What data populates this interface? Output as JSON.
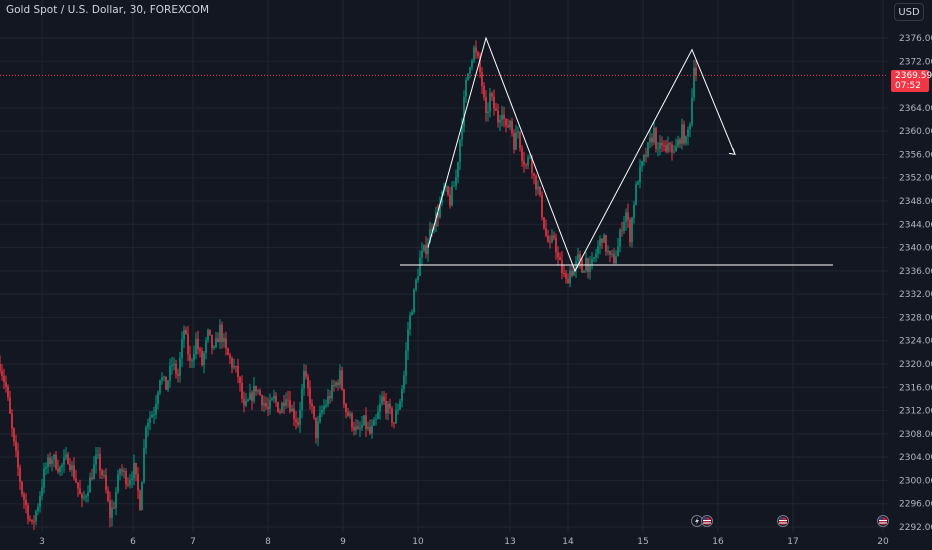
{
  "header": {
    "symbol_title": "Gold Spot / U.S. Dollar, 30, FOREXCOM",
    "currency_button": "USD"
  },
  "price_label": {
    "price": "2369.59",
    "countdown": "07:52",
    "color": "#f23645"
  },
  "colors": {
    "up": "#089981",
    "down": "#f23645",
    "background": "#131722",
    "grid": "#1f2430",
    "annotation": "#ffffff"
  },
  "event_icons": [
    "flash-icon",
    "us-flag-icon",
    "us-flag-icon",
    "us-flag-icon"
  ],
  "chart_data": {
    "type": "candlestick",
    "ylim": [
      2290.6,
      2379.9
    ],
    "y_ticks": [
      2376.0,
      2372.0,
      2364.0,
      2360.0,
      2356.0,
      2352.0,
      2348.0,
      2344.0,
      2340.0,
      2336.0,
      2332.0,
      2328.0,
      2324.0,
      2320.0,
      2316.0,
      2312.0,
      2308.0,
      2304.0,
      2300.0,
      2296.0,
      2292.0
    ],
    "y_tick_labels": [
      "2376.00",
      "2372.00",
      "2364.00",
      "2360.00",
      "2356.00",
      "2352.00",
      "2348.00",
      "2344.00",
      "2340.00",
      "2336.00",
      "2332.00",
      "2328.00",
      "2324.00",
      "2320.00",
      "2316.00",
      "2312.00",
      "2308.00",
      "2304.00",
      "2300.00",
      "2296.00",
      "2292.00"
    ],
    "x_ticks": [
      {
        "label": "3",
        "bar": 42
      },
      {
        "label": "6",
        "bar": 133
      },
      {
        "label": "7",
        "bar": 193
      },
      {
        "label": "8",
        "bar": 268
      },
      {
        "label": "9",
        "bar": 343
      },
      {
        "label": "10",
        "bar": 418
      },
      {
        "label": "13",
        "bar": 510
      },
      {
        "label": "14",
        "bar": 568
      },
      {
        "label": "15",
        "bar": 643
      },
      {
        "label": "16",
        "bar": 718
      },
      {
        "label": "17",
        "bar": 793
      },
      {
        "label": "20",
        "bar": 883
      }
    ],
    "last_price": 2369.59,
    "anchors": [
      [
        0,
        2320
      ],
      [
        6,
        2316
      ],
      [
        14,
        2306
      ],
      [
        22,
        2298
      ],
      [
        32,
        2292
      ],
      [
        38,
        2296
      ],
      [
        45,
        2302
      ],
      [
        52,
        2304
      ],
      [
        60,
        2302
      ],
      [
        68,
        2304
      ],
      [
        76,
        2300
      ],
      [
        82,
        2296
      ],
      [
        90,
        2300
      ],
      [
        97,
        2304
      ],
      [
        104,
        2300
      ],
      [
        110,
        2294
      ],
      [
        114,
        2296
      ],
      [
        120,
        2302
      ],
      [
        128,
        2300
      ],
      [
        134,
        2302
      ],
      [
        140,
        2296
      ],
      [
        146,
        2310
      ],
      [
        154,
        2312
      ],
      [
        160,
        2318
      ],
      [
        166,
        2316
      ],
      [
        172,
        2320
      ],
      [
        178,
        2318
      ],
      [
        184,
        2326
      ],
      [
        190,
        2320
      ],
      [
        196,
        2324
      ],
      [
        202,
        2320
      ],
      [
        208,
        2325
      ],
      [
        214,
        2322
      ],
      [
        220,
        2326
      ],
      [
        226,
        2322
      ],
      [
        232,
        2320
      ],
      [
        238,
        2318
      ],
      [
        244,
        2312
      ],
      [
        250,
        2314
      ],
      [
        256,
        2316
      ],
      [
        262,
        2314
      ],
      [
        268,
        2312
      ],
      [
        274,
        2314
      ],
      [
        280,
        2312
      ],
      [
        286,
        2315
      ],
      [
        292,
        2312
      ],
      [
        298,
        2310
      ],
      [
        304,
        2318
      ],
      [
        310,
        2314
      ],
      [
        316,
        2308
      ],
      [
        322,
        2312
      ],
      [
        328,
        2314
      ],
      [
        334,
        2316
      ],
      [
        340,
        2318
      ],
      [
        346,
        2312
      ],
      [
        352,
        2310
      ],
      [
        358,
        2308
      ],
      [
        364,
        2310
      ],
      [
        370,
        2308
      ],
      [
        376,
        2310
      ],
      [
        382,
        2314
      ],
      [
        388,
        2312
      ],
      [
        394,
        2310
      ],
      [
        400,
        2314
      ],
      [
        404,
        2318
      ],
      [
        408,
        2326
      ],
      [
        412,
        2330
      ],
      [
        416,
        2334
      ],
      [
        420,
        2338
      ],
      [
        426,
        2340
      ],
      [
        432,
        2344
      ],
      [
        438,
        2346
      ],
      [
        444,
        2350
      ],
      [
        450,
        2348
      ],
      [
        456,
        2352
      ],
      [
        462,
        2362
      ],
      [
        466,
        2368
      ],
      [
        470,
        2372
      ],
      [
        474,
        2374
      ],
      [
        478,
        2372
      ],
      [
        482,
        2368
      ],
      [
        486,
        2362
      ],
      [
        490,
        2366
      ],
      [
        494,
        2364
      ],
      [
        498,
        2362
      ],
      [
        502,
        2364
      ],
      [
        506,
        2360
      ],
      [
        510,
        2362
      ],
      [
        514,
        2358
      ],
      [
        518,
        2360
      ],
      [
        522,
        2356
      ],
      [
        526,
        2354
      ],
      [
        530,
        2356
      ],
      [
        534,
        2352
      ],
      [
        538,
        2350
      ],
      [
        542,
        2346
      ],
      [
        546,
        2342
      ],
      [
        550,
        2340
      ],
      [
        554,
        2342
      ],
      [
        558,
        2338
      ],
      [
        562,
        2336
      ],
      [
        566,
        2334
      ],
      [
        570,
        2336
      ],
      [
        574,
        2336
      ],
      [
        578,
        2338
      ],
      [
        582,
        2336
      ],
      [
        586,
        2338
      ],
      [
        590,
        2336
      ],
      [
        594,
        2338
      ],
      [
        598,
        2340
      ],
      [
        602,
        2342
      ],
      [
        606,
        2340
      ],
      [
        610,
        2338
      ],
      [
        614,
        2338
      ],
      [
        618,
        2340
      ],
      [
        622,
        2344
      ],
      [
        626,
        2346
      ],
      [
        630,
        2342
      ],
      [
        634,
        2348
      ],
      [
        638,
        2352
      ],
      [
        642,
        2354
      ],
      [
        646,
        2356
      ],
      [
        650,
        2358
      ],
      [
        654,
        2360
      ],
      [
        658,
        2356
      ],
      [
        662,
        2358
      ],
      [
        666,
        2356
      ],
      [
        670,
        2358
      ],
      [
        674,
        2356
      ],
      [
        678,
        2358
      ],
      [
        682,
        2360
      ],
      [
        686,
        2358
      ],
      [
        690,
        2362
      ],
      [
        692,
        2366
      ],
      [
        694,
        2372
      ],
      [
        696,
        2370
      ]
    ],
    "annotations": {
      "pattern_polyline": [
        [
          428,
          2340
        ],
        [
          486,
          2376
        ],
        [
          575,
          2336
        ],
        [
          692,
          2374
        ],
        [
          735,
          2356
        ]
      ],
      "support_line": {
        "value": 2337,
        "from_bar": 400,
        "to_bar": 833
      },
      "current_price_line": 2369.59
    }
  }
}
